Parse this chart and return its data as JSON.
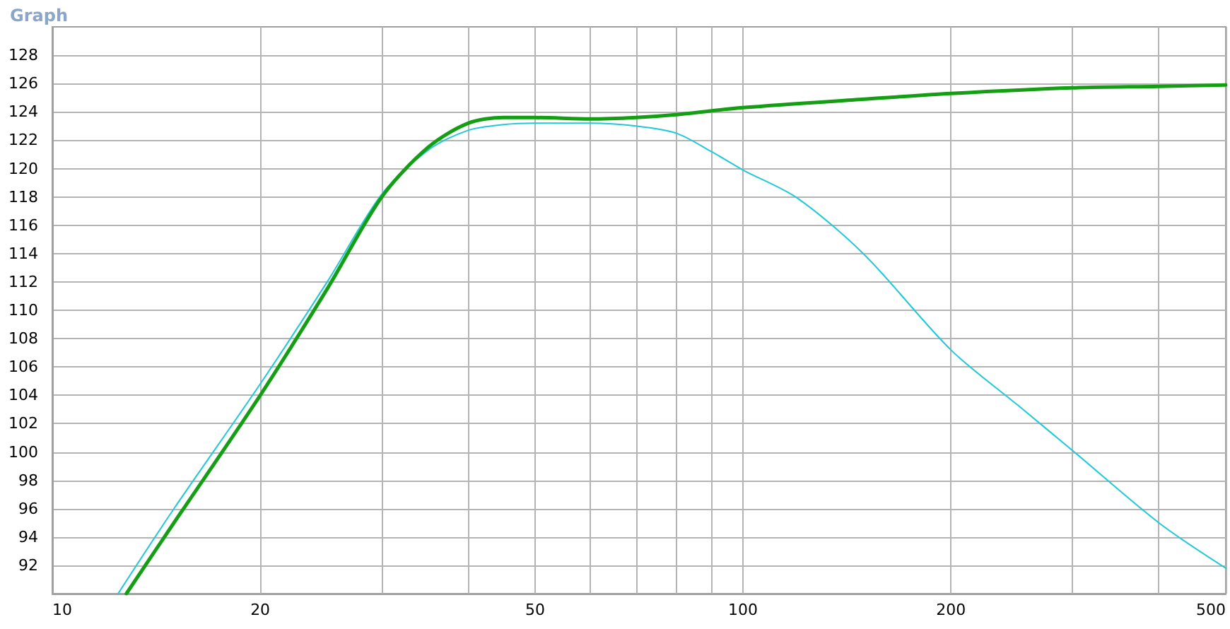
{
  "chart_data": {
    "type": "line",
    "title": "Graph",
    "xlim": [
      10,
      500
    ],
    "ylim": [
      90,
      130
    ],
    "log": "x",
    "grid": true,
    "line_style": "solid",
    "marker": "none",
    "xticks": [
      10,
      20,
      {
        "value": 30,
        "label": null
      },
      {
        "value": 40,
        "label": null
      },
      50,
      {
        "value": 60,
        "label": null
      },
      {
        "value": 70,
        "label": null
      },
      {
        "value": 80,
        "label": null
      },
      {
        "value": 90,
        "label": null
      },
      100,
      200,
      {
        "value": 300,
        "label": null
      },
      {
        "value": 400,
        "label": null
      },
      500
    ],
    "yticks": [
      92,
      94,
      96,
      98,
      100,
      102,
      104,
      106,
      108,
      110,
      112,
      114,
      116,
      118,
      120,
      122,
      124,
      126,
      128
    ],
    "series": [
      {
        "color": "#20c8d8",
        "x": [
          12.45,
          15,
          20,
          25,
          30,
          35,
          40,
          45,
          50,
          60,
          70,
          80,
          90,
          100,
          120,
          150,
          200,
          250,
          300,
          400,
          500
        ],
        "values": [
          90,
          96,
          104.8,
          112,
          118.2,
          121.3,
          122.7,
          123.1,
          123.2,
          123.2,
          123,
          122.5,
          121.2,
          119.9,
          117.9,
          113.9,
          107.2,
          103.3,
          100.1,
          95,
          91.8
        ]
      },
      {
        "color": "#149e14",
        "x": [
          12.8,
          15,
          20,
          25,
          30,
          35,
          40,
          45,
          50,
          60,
          70,
          80,
          100,
          150,
          200,
          300,
          400,
          500
        ],
        "values": [
          90,
          95,
          104,
          111.5,
          118,
          121.5,
          123.2,
          123.6,
          123.6,
          123.5,
          123.6,
          123.8,
          124.3,
          124.9,
          125.3,
          125.7,
          125.8,
          125.9
        ]
      }
    ]
  }
}
